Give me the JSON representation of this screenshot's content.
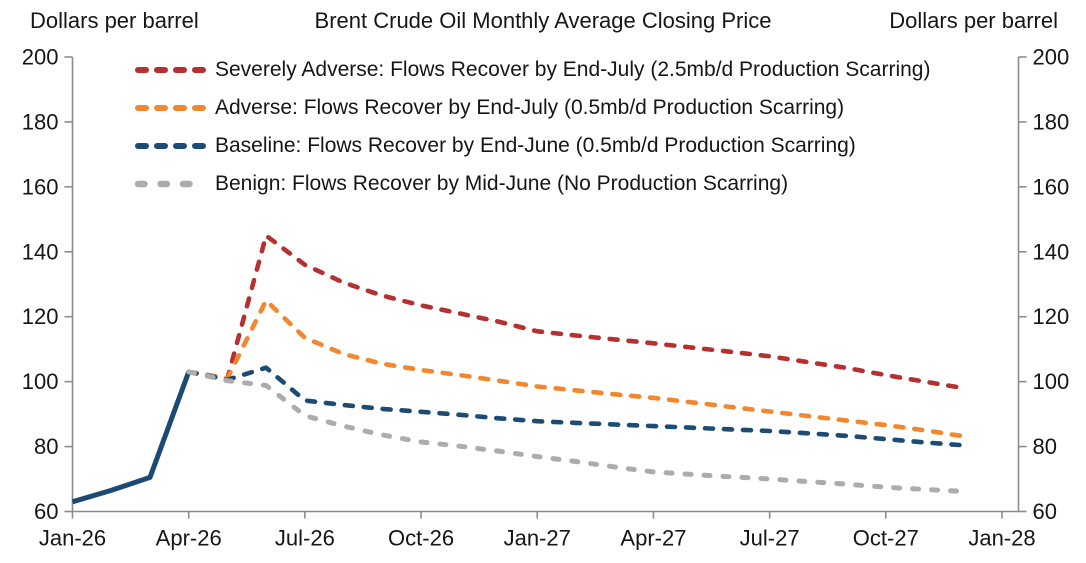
{
  "header": {
    "left_axis_label": "Dollars per barrel",
    "title": "Brent Crude Oil Monthly Average Closing Price",
    "right_axis_label": "Dollars per barrel"
  },
  "chart_data": {
    "type": "line",
    "title": "Brent Crude Oil Monthly Average Closing Price",
    "ylabel_left": "Dollars per barrel",
    "ylabel_right": "Dollars per barrel",
    "ylim": [
      60,
      200
    ],
    "yticks": [
      60,
      80,
      100,
      120,
      140,
      160,
      180,
      200
    ],
    "x_unit": "month",
    "x_range_months": 24,
    "xticks": [
      "Jan-26",
      "Apr-26",
      "Jul-26",
      "Oct-26",
      "Jan-27",
      "Apr-27",
      "Jul-27",
      "Oct-27",
      "Jan-28"
    ],
    "xtick_interval_months": 3,
    "grid": false,
    "legend_position": "inside-top-left",
    "axis_color": "#8c8c8c",
    "text_color": "#161616",
    "series": [
      {
        "name": "historical",
        "label": "",
        "color": "#1B4A72",
        "style": "solid",
        "start_month": 0,
        "values": [
          63,
          66.5,
          70.5,
          103
        ]
      },
      {
        "name": "severely-adverse",
        "label": "Severely Adverse: Flows Recover by End-July (2.5mb/d Production Scarring)",
        "color": "#B5302F",
        "style": "dashed",
        "start_month": 3,
        "values": [
          103,
          101,
          145,
          136,
          130.5,
          126.5,
          123.5,
          121,
          118.5,
          115.5,
          114.2,
          113,
          111.8,
          110.5,
          109.2,
          107.8,
          106,
          104.2,
          102,
          100,
          98
        ]
      },
      {
        "name": "adverse",
        "label": "Adverse: Flows Recover by End-July (0.5mb/d Production Scarring)",
        "color": "#F1882F",
        "style": "dashed",
        "start_month": 3,
        "values": [
          103,
          101,
          125,
          113.5,
          108.5,
          105.5,
          103.6,
          102,
          100.3,
          98.5,
          97.3,
          96.1,
          95,
          93.6,
          92.2,
          90.8,
          89.4,
          88,
          86.6,
          85,
          83.2
        ]
      },
      {
        "name": "baseline",
        "label": "Baseline: Flows Recover by End-June (0.5mb/d Production Scarring)",
        "color": "#1C4B74",
        "style": "dashed",
        "start_month": 3,
        "values": [
          103,
          100.6,
          104.3,
          94.2,
          92.8,
          91.6,
          90.7,
          89.8,
          88.7,
          87.8,
          87.3,
          86.8,
          86.3,
          85.8,
          85.3,
          84.8,
          84.1,
          83.3,
          82.3,
          81.3,
          80.4
        ]
      },
      {
        "name": "benign",
        "label": "Benign: Flows Recover by Mid-June (No Production Scarring)",
        "color": "#ACACAC",
        "style": "dashed-loose",
        "start_month": 3,
        "values": [
          103,
          100.3,
          98.8,
          89.5,
          86.3,
          83.6,
          81.4,
          80.1,
          78.6,
          76.9,
          75.4,
          73.7,
          72.2,
          71.4,
          70.7,
          70,
          69.2,
          68.4,
          67.5,
          66.8,
          66.2
        ]
      }
    ]
  }
}
